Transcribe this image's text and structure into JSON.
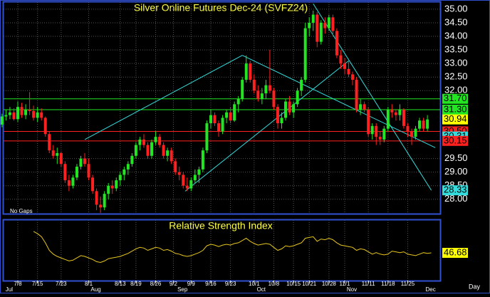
{
  "chart_data": {
    "type": "candlestick",
    "title": "Silver Online Futures Dec-24 (SVFZ24)",
    "subtitle": "Relative Strength Index",
    "note": "No Gaps",
    "x_label": "Day",
    "ylim": [
      27.47,
      35.26
    ],
    "yticks": [
      {
        "value": 28,
        "label": "28.00"
      },
      {
        "value": 28.5,
        "label": "28.50"
      },
      {
        "value": 29,
        "label": "29.00"
      },
      {
        "value": 29.5,
        "label": "29.50"
      },
      {
        "value": 32,
        "label": "32.00"
      },
      {
        "value": 32.5,
        "label": "32.50"
      },
      {
        "value": 33,
        "label": "33.00"
      },
      {
        "value": 33.5,
        "label": "33.50"
      },
      {
        "value": 34,
        "label": "34.00"
      },
      {
        "value": 34.5,
        "label": "34.50"
      },
      {
        "value": 35,
        "label": "35.00"
      }
    ],
    "xticks": [
      {
        "value": 4,
        "label": "7/8"
      },
      {
        "value": 9,
        "label": "7/15"
      },
      {
        "value": 15,
        "label": "7/23"
      },
      {
        "value": 22,
        "label": "8/1"
      },
      {
        "value": 30,
        "label": "8/13"
      },
      {
        "value": 34,
        "label": "8/19"
      },
      {
        "value": 39,
        "label": "8/26"
      },
      {
        "value": 43.5,
        "label": "9/2"
      },
      {
        "value": 48,
        "label": "9/9"
      },
      {
        "value": 53,
        "label": "9/16"
      },
      {
        "value": 58,
        "label": "9/23"
      },
      {
        "value": 64,
        "label": "10/1"
      },
      {
        "value": 69,
        "label": "10/8"
      },
      {
        "value": 74,
        "label": "10/15"
      },
      {
        "value": 78,
        "label": "10/21"
      },
      {
        "value": 83,
        "label": "10/28"
      },
      {
        "value": 87,
        "label": "11/1"
      },
      {
        "value": 93,
        "label": "11/11"
      },
      {
        "value": 98,
        "label": "11/18"
      },
      {
        "value": 103,
        "label": "11/25"
      }
    ],
    "months": [
      {
        "value": 0,
        "label": "Jul"
      },
      {
        "value": 22,
        "label": "Aug"
      },
      {
        "value": 44,
        "label": "Sep"
      },
      {
        "value": 64,
        "label": "Oct"
      },
      {
        "value": 87,
        "label": "Nov"
      },
      {
        "value": 107,
        "label": "Dec"
      }
    ],
    "grid": true,
    "up_color": "#22e622",
    "down_color": "#ff2020",
    "ohlc": [
      [
        30.75,
        31.15,
        30.65,
        31.05
      ],
      [
        31.05,
        31.3,
        30.9,
        31.1
      ],
      [
        31.1,
        31.4,
        30.95,
        31.2
      ],
      [
        31.2,
        31.35,
        30.9,
        30.95
      ],
      [
        30.95,
        31.6,
        30.85,
        31.4
      ],
      [
        31.4,
        31.55,
        31.0,
        31.1
      ],
      [
        31.1,
        31.5,
        30.95,
        31.3
      ],
      [
        31.3,
        31.95,
        31.1,
        31.25
      ],
      [
        31.25,
        31.45,
        30.9,
        31.0
      ],
      [
        31.0,
        31.4,
        30.85,
        31.2
      ],
      [
        31.2,
        31.35,
        30.9,
        31.0
      ],
      [
        31.0,
        31.05,
        30.3,
        30.4
      ],
      [
        30.4,
        30.5,
        29.7,
        29.8
      ],
      [
        29.8,
        30.0,
        29.5,
        29.6
      ],
      [
        29.6,
        29.9,
        29.3,
        29.7
      ],
      [
        29.7,
        29.75,
        29.2,
        29.3
      ],
      [
        29.3,
        29.4,
        28.6,
        28.7
      ],
      [
        28.7,
        28.9,
        28.3,
        28.5
      ],
      [
        28.5,
        28.9,
        28.4,
        28.8
      ],
      [
        28.8,
        29.3,
        28.7,
        29.2
      ],
      [
        29.2,
        29.6,
        29.1,
        29.5
      ],
      [
        29.5,
        29.7,
        29.2,
        29.3
      ],
      [
        29.3,
        29.5,
        28.7,
        28.8
      ],
      [
        28.8,
        28.9,
        28.2,
        28.3
      ],
      [
        28.3,
        28.4,
        27.6,
        27.8
      ],
      [
        27.8,
        28.1,
        27.5,
        27.7
      ],
      [
        27.7,
        28.3,
        27.6,
        28.2
      ],
      [
        28.2,
        28.6,
        28.0,
        28.5
      ],
      [
        28.5,
        28.7,
        28.2,
        28.4
      ],
      [
        28.4,
        28.8,
        28.3,
        28.7
      ],
      [
        28.7,
        29.0,
        28.5,
        28.9
      ],
      [
        28.9,
        29.2,
        28.7,
        29.1
      ],
      [
        29.1,
        29.4,
        28.9,
        29.3
      ],
      [
        29.3,
        29.7,
        29.2,
        29.6
      ],
      [
        29.6,
        30.1,
        29.5,
        30.0
      ],
      [
        30.0,
        30.3,
        29.8,
        30.2
      ],
      [
        30.2,
        30.4,
        29.9,
        30.0
      ],
      [
        30.0,
        30.1,
        29.5,
        29.6
      ],
      [
        29.6,
        30.2,
        29.5,
        30.1
      ],
      [
        30.1,
        30.5,
        30.0,
        30.3
      ],
      [
        30.3,
        30.4,
        29.9,
        30.0
      ],
      [
        30.0,
        30.1,
        29.5,
        29.6
      ],
      [
        29.6,
        29.9,
        29.4,
        29.8
      ],
      [
        29.8,
        29.9,
        29.3,
        29.4
      ],
      [
        29.4,
        29.5,
        28.9,
        29.0
      ],
      [
        29.0,
        29.2,
        28.7,
        28.9
      ],
      [
        28.9,
        29.0,
        28.4,
        28.5
      ],
      [
        28.5,
        28.8,
        28.3,
        28.4
      ],
      [
        28.4,
        28.8,
        28.3,
        28.7
      ],
      [
        28.7,
        29.1,
        28.6,
        28.9
      ],
      [
        28.9,
        29.2,
        28.6,
        29.1
      ],
      [
        29.1,
        29.9,
        29.0,
        29.8
      ],
      [
        29.8,
        30.9,
        29.7,
        30.8
      ],
      [
        30.8,
        31.3,
        30.6,
        31.1
      ],
      [
        31.1,
        31.2,
        30.7,
        30.8
      ],
      [
        30.8,
        30.9,
        30.3,
        30.5
      ],
      [
        30.5,
        31.1,
        30.4,
        31.0
      ],
      [
        31.0,
        31.3,
        30.8,
        31.2
      ],
      [
        31.2,
        31.4,
        30.8,
        30.9
      ],
      [
        30.9,
        31.6,
        30.85,
        31.5
      ],
      [
        31.5,
        31.8,
        31.2,
        31.7
      ],
      [
        31.7,
        32.5,
        31.6,
        32.4
      ],
      [
        32.4,
        33.3,
        32.3,
        33.0
      ],
      [
        33.0,
        33.1,
        32.3,
        32.4
      ],
      [
        32.4,
        32.6,
        31.9,
        32.0
      ],
      [
        32.0,
        32.2,
        31.6,
        31.7
      ],
      [
        31.7,
        32.1,
        31.5,
        31.9
      ],
      [
        31.9,
        32.4,
        31.7,
        32.2
      ],
      [
        32.2,
        33.5,
        31.9,
        32.0
      ],
      [
        32.0,
        32.1,
        31.3,
        31.4
      ],
      [
        31.4,
        31.5,
        30.6,
        30.8
      ],
      [
        30.8,
        31.2,
        30.6,
        31.0
      ],
      [
        31.0,
        31.7,
        30.9,
        31.6
      ],
      [
        31.6,
        31.8,
        31.1,
        31.2
      ],
      [
        31.2,
        31.6,
        31.0,
        31.5
      ],
      [
        31.5,
        32.1,
        31.4,
        32.0
      ],
      [
        32.0,
        32.5,
        31.8,
        32.4
      ],
      [
        32.4,
        34.5,
        32.3,
        34.3
      ],
      [
        34.3,
        34.7,
        34.0,
        34.5
      ],
      [
        34.5,
        34.95,
        34.2,
        34.8
      ],
      [
        34.8,
        34.9,
        33.6,
        33.8
      ],
      [
        33.8,
        34.6,
        33.7,
        34.5
      ],
      [
        34.5,
        34.7,
        34.1,
        34.3
      ],
      [
        34.3,
        34.8,
        34.2,
        34.7
      ],
      [
        34.7,
        34.8,
        34.0,
        34.2
      ],
      [
        34.2,
        34.3,
        33.2,
        33.3
      ],
      [
        33.3,
        33.5,
        32.8,
        33.0
      ],
      [
        33.0,
        33.2,
        32.6,
        32.8
      ],
      [
        32.8,
        33.1,
        32.5,
        32.6
      ],
      [
        32.6,
        32.7,
        32.2,
        32.4
      ],
      [
        32.4,
        32.5,
        31.2,
        31.3
      ],
      [
        31.3,
        31.7,
        31.1,
        31.5
      ],
      [
        31.5,
        31.6,
        31.2,
        31.3
      ],
      [
        31.3,
        31.4,
        30.3,
        30.4
      ],
      [
        30.4,
        30.8,
        30.2,
        30.7
      ],
      [
        30.7,
        30.8,
        30.0,
        30.3
      ],
      [
        30.3,
        30.5,
        30.0,
        30.2
      ],
      [
        30.2,
        30.7,
        30.1,
        30.6
      ],
      [
        30.6,
        31.4,
        30.5,
        31.3
      ],
      [
        31.3,
        31.5,
        31.0,
        31.2
      ],
      [
        31.2,
        31.3,
        30.9,
        31.1
      ],
      [
        31.1,
        31.5,
        30.9,
        31.3
      ],
      [
        31.3,
        31.35,
        30.6,
        30.7
      ],
      [
        30.7,
        30.8,
        30.3,
        30.5
      ],
      [
        30.5,
        30.6,
        30.0,
        30.3
      ],
      [
        30.3,
        30.7,
        30.2,
        30.6
      ],
      [
        30.6,
        31.0,
        30.5,
        30.9
      ],
      [
        30.9,
        31.0,
        30.5,
        30.6
      ],
      [
        30.6,
        31.1,
        30.5,
        30.94
      ]
    ],
    "levels": [
      {
        "value": 31.7,
        "label": "31.70",
        "color": "#22e622",
        "line": true
      },
      {
        "value": 31.3,
        "label": "31.30",
        "color": "#22e622",
        "line": true
      },
      {
        "value": 30.94,
        "label": "30.94",
        "color": "#ffff00",
        "line": false
      },
      {
        "value": 30.5,
        "label": "30.50",
        "color": "#ff2020",
        "line": true
      },
      {
        "value": 30.31,
        "label": "30.31",
        "color": "#33dddd",
        "line": false
      },
      {
        "value": 30.15,
        "label": "30.15",
        "color": "#ff2020",
        "line": true
      },
      {
        "value": 28.33,
        "label": "28.33",
        "color": "#33dddd",
        "line": false
      }
    ],
    "trendlines": {
      "color": "#33dddd",
      "lines": [
        [
          [
            21,
            30.2
          ],
          [
            61,
            33.3
          ]
        ],
        [
          [
            46.5,
            28.3
          ],
          [
            88,
            33.1
          ]
        ],
        [
          [
            61,
            33.3
          ],
          [
            110,
            29.9
          ]
        ],
        [
          [
            79,
            35.2
          ],
          [
            109,
            28.33
          ]
        ]
      ]
    },
    "rsi": {
      "color": "#e6c619",
      "ylim": [
        10,
        90
      ],
      "value_label": "46.68",
      "values": [
        null,
        null,
        null,
        null,
        null,
        null,
        null,
        null,
        75,
        72,
        68,
        60,
        50,
        45,
        42,
        40,
        38,
        36,
        37,
        40,
        43,
        42,
        40,
        38,
        35,
        34,
        36,
        39,
        40,
        41,
        42,
        44,
        46,
        49,
        52,
        54,
        53,
        50,
        52,
        54,
        53,
        50,
        51,
        49,
        46,
        45,
        43,
        42,
        43,
        45,
        47,
        50,
        56,
        58,
        57,
        55,
        57,
        58,
        57,
        59,
        60,
        63,
        66,
        62,
        59,
        57,
        58,
        59,
        58,
        54,
        50,
        52,
        56,
        55,
        56,
        58,
        60,
        66,
        67,
        68,
        62,
        65,
        64,
        66,
        64,
        60,
        57,
        56,
        55,
        54,
        50,
        52,
        51,
        48,
        45,
        47,
        45,
        44,
        45,
        49,
        48,
        47,
        48,
        45,
        44,
        43,
        45,
        47,
        46,
        46.68
      ]
    }
  }
}
